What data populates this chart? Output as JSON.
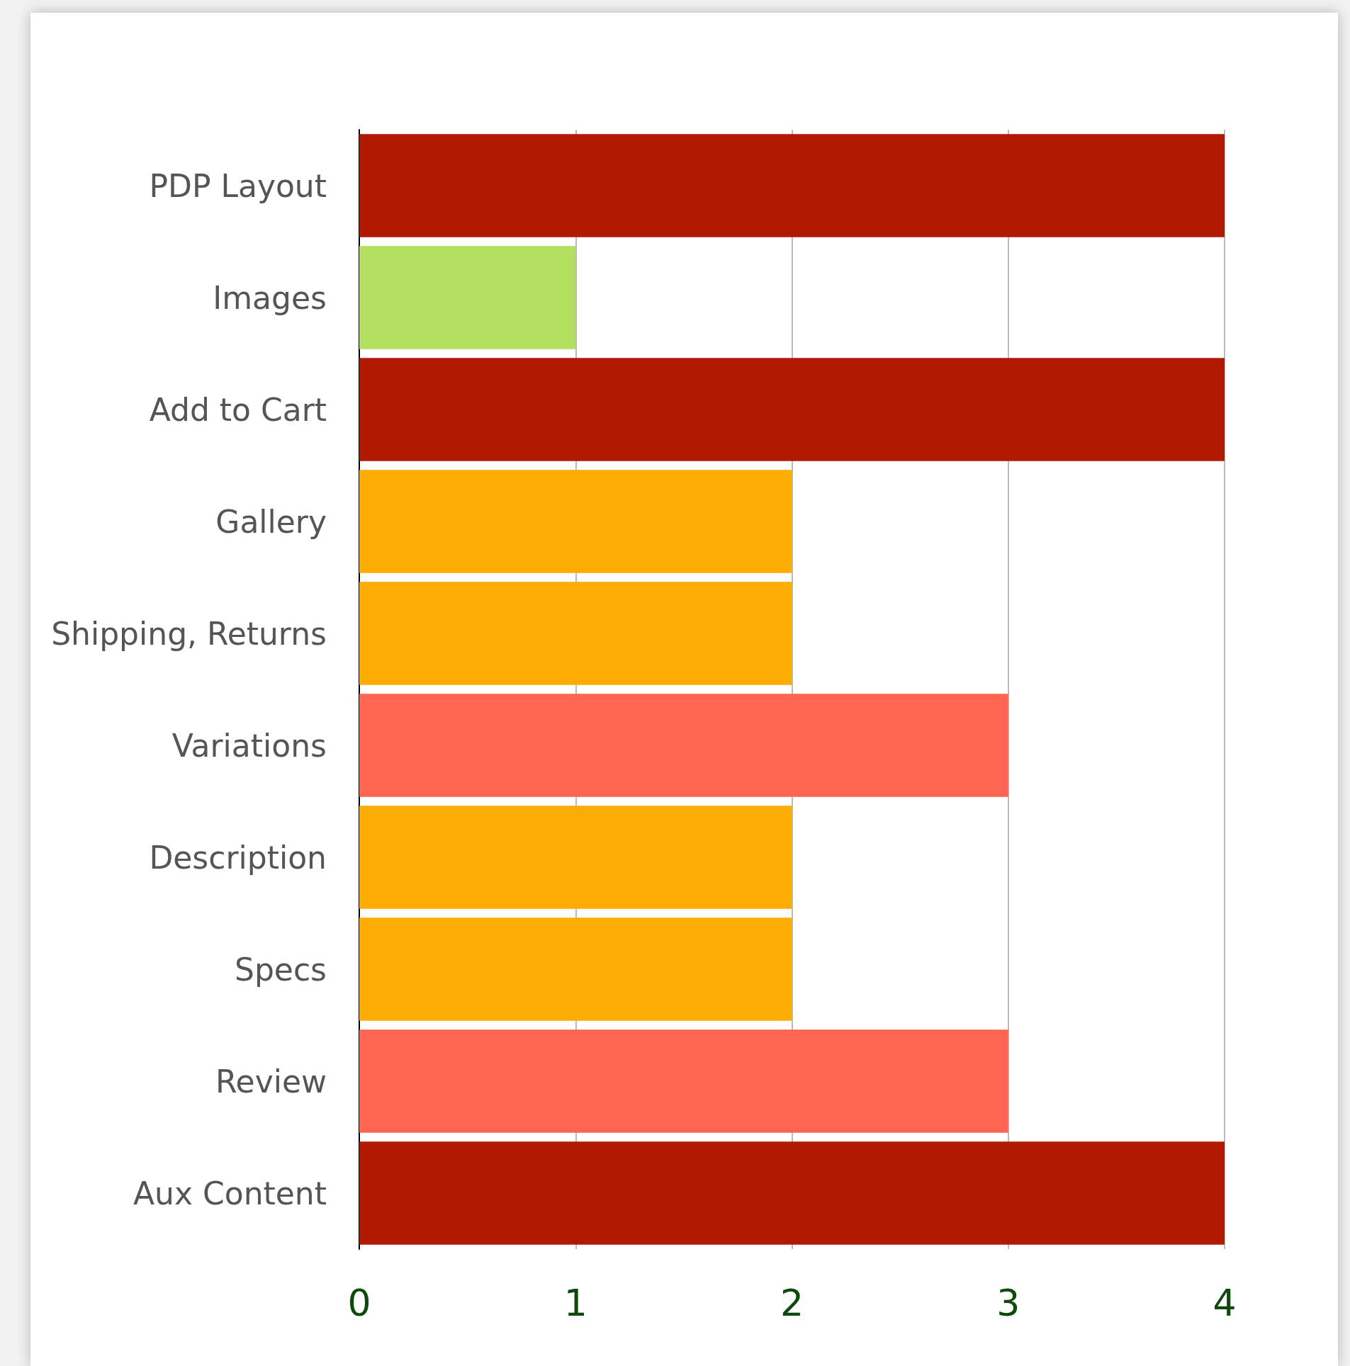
{
  "chart_data": {
    "type": "bar",
    "orientation": "horizontal",
    "categories": [
      "PDP Layout",
      "Images",
      "Add to Cart",
      "Gallery",
      "Shipping, Returns",
      "Variations",
      "Description",
      "Specs",
      "Review",
      "Aux Content"
    ],
    "values": [
      4,
      1,
      4,
      2,
      2,
      3,
      2,
      2,
      3,
      4
    ],
    "colors": [
      "#b31800",
      "#b3df5e",
      "#b31800",
      "#fbad03",
      "#fbad03",
      "#ff6550",
      "#fbad03",
      "#fbad03",
      "#ff6550",
      "#b31800"
    ],
    "xlim": [
      0,
      4
    ],
    "xticks": [
      0,
      1,
      2,
      3,
      4
    ],
    "grid": "x"
  }
}
